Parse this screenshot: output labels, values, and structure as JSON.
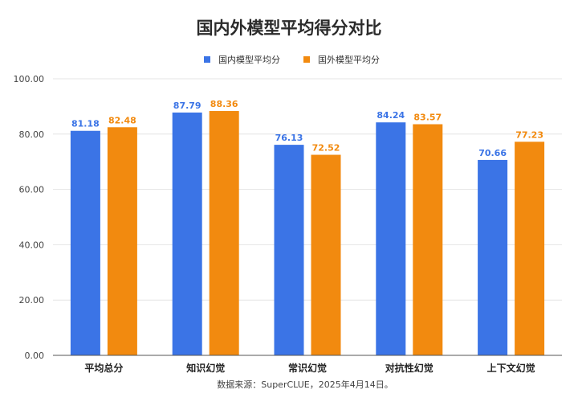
{
  "chart_data": {
    "type": "bar",
    "title": "国内外模型平均得分对比",
    "categories": [
      "平均总分",
      "知识幻觉",
      "常识幻觉",
      "对抗性幻觉",
      "上下文幻觉"
    ],
    "series": [
      {
        "name": "国内模型平均分",
        "color": "#3b74e6",
        "values": [
          81.18,
          87.79,
          76.13,
          84.24,
          70.66
        ],
        "labels": [
          "81.18",
          "87.79",
          "76.13",
          "84.24",
          "70.66"
        ]
      },
      {
        "name": "国外模型平均分",
        "color": "#f28a0f",
        "values": [
          82.48,
          88.36,
          72.52,
          83.57,
          77.23
        ],
        "labels": [
          "82.48",
          "88.36",
          "72.52",
          "83.57",
          "77.23"
        ]
      }
    ],
    "ylim": [
      0,
      100
    ],
    "yticks": [
      "0.00",
      "20.00",
      "40.00",
      "60.00",
      "80.00",
      "100.00"
    ],
    "grid": true,
    "legend": "top-center",
    "source": "数据来源：SuperCLUE，2025年4月14日。"
  }
}
